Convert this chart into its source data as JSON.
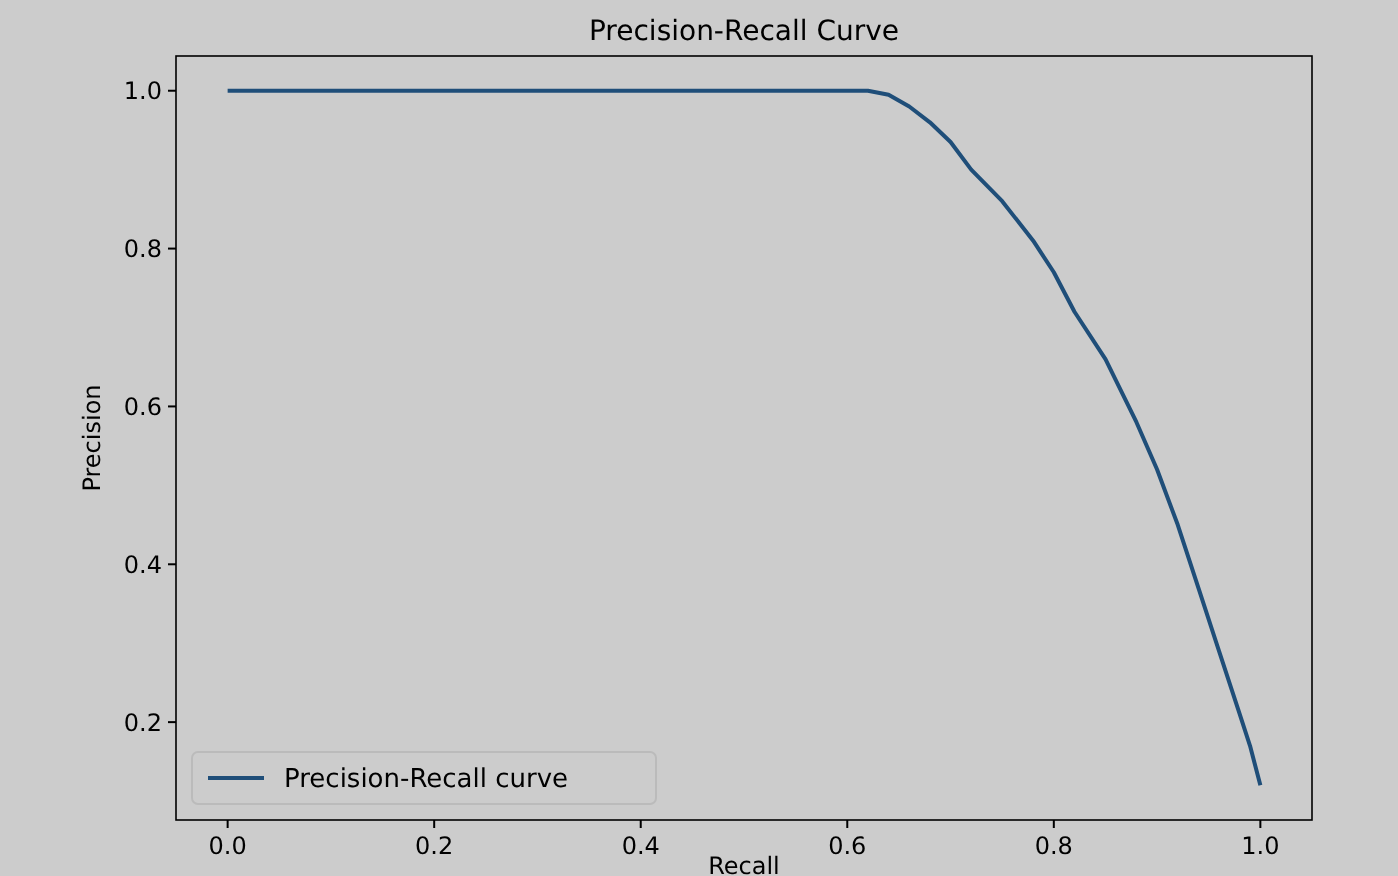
{
  "chart_data": {
    "type": "line",
    "title": "Precision-Recall Curve",
    "xlabel": "Recall",
    "ylabel": "Precision",
    "x": [
      0,
      0.3,
      0.62,
      0.64,
      0.66,
      0.68,
      0.7,
      0.72,
      0.75,
      0.78,
      0.8,
      0.82,
      0.85,
      0.88,
      0.9,
      0.92,
      0.94,
      0.96,
      0.98,
      0.99,
      1.0
    ],
    "series": [
      {
        "name": "Precision-Recall curve",
        "color": "#1f4e79",
        "values": [
          1,
          1,
          1,
          0.995,
          0.98,
          0.96,
          0.935,
          0.9,
          0.86,
          0.81,
          0.77,
          0.72,
          0.66,
          0.58,
          0.52,
          0.45,
          0.37,
          0.29,
          0.21,
          0.17,
          0.12
        ]
      }
    ],
    "xlim": [
      -0.05,
      1.05
    ],
    "ylim": [
      0.076,
      1.044
    ],
    "xticks": [
      {
        "value": 0,
        "label": "0.0"
      },
      {
        "value": 0.2,
        "label": "0.2"
      },
      {
        "value": 0.4,
        "label": "0.4"
      },
      {
        "value": 0.6,
        "label": "0.6"
      },
      {
        "value": 0.8,
        "label": "0.8"
      },
      {
        "value": 1,
        "label": "1.0"
      }
    ],
    "yticks": [
      {
        "value": 0.2,
        "label": "0.2"
      },
      {
        "value": 0.4,
        "label": "0.4"
      },
      {
        "value": 0.6,
        "label": "0.6"
      },
      {
        "value": 0.8,
        "label": "0.8"
      },
      {
        "value": 1,
        "label": "1.0"
      }
    ],
    "legend": "bottom left",
    "grid": false,
    "marker": "none",
    "line_style": "solid"
  }
}
